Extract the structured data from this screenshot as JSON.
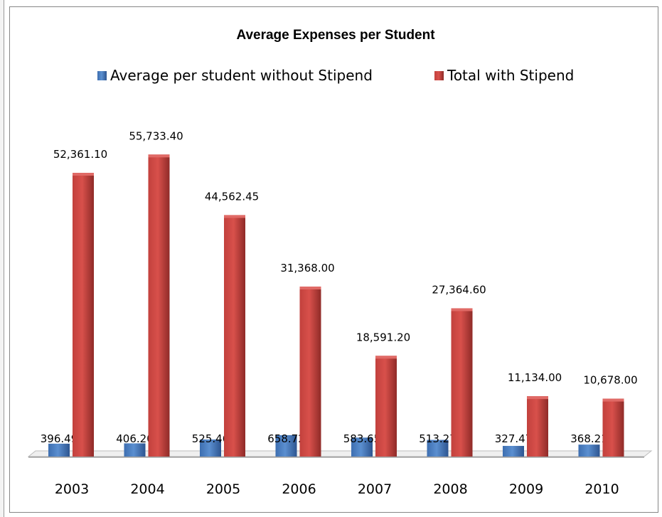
{
  "chart_data": {
    "type": "bar",
    "title": "Average Expenses per Student",
    "categories": [
      "2003",
      "2004",
      "2005",
      "2006",
      "2007",
      "2008",
      "2009",
      "2010"
    ],
    "series": [
      {
        "name": "Average per student without Stipend",
        "color": "#4a7ebb",
        "values": [
          396.49,
          406.2,
          525.46,
          658.72,
          583.65,
          513.27,
          327.47,
          368.21
        ],
        "labels": [
          "396.49",
          "406.20",
          "525.46",
          "658.72",
          "583.65",
          "513.27",
          "327.47",
          "368.21"
        ]
      },
      {
        "name": "Total with Stipend",
        "color": "#c0504d",
        "values": [
          52361.1,
          55733.4,
          44562.45,
          31368.0,
          18591.2,
          27364.6,
          11134.0,
          10678.0
        ],
        "labels": [
          "52,361.10",
          "55,733.40",
          "44,562.45",
          "31,368.00",
          "18,591.20",
          "27,364.60",
          "11,134.00",
          "10,678.00"
        ]
      }
    ],
    "xlabel": "",
    "ylabel": "",
    "ylim": [
      0,
      60000
    ],
    "grid": false,
    "legend": "top",
    "style": "3d-column"
  }
}
